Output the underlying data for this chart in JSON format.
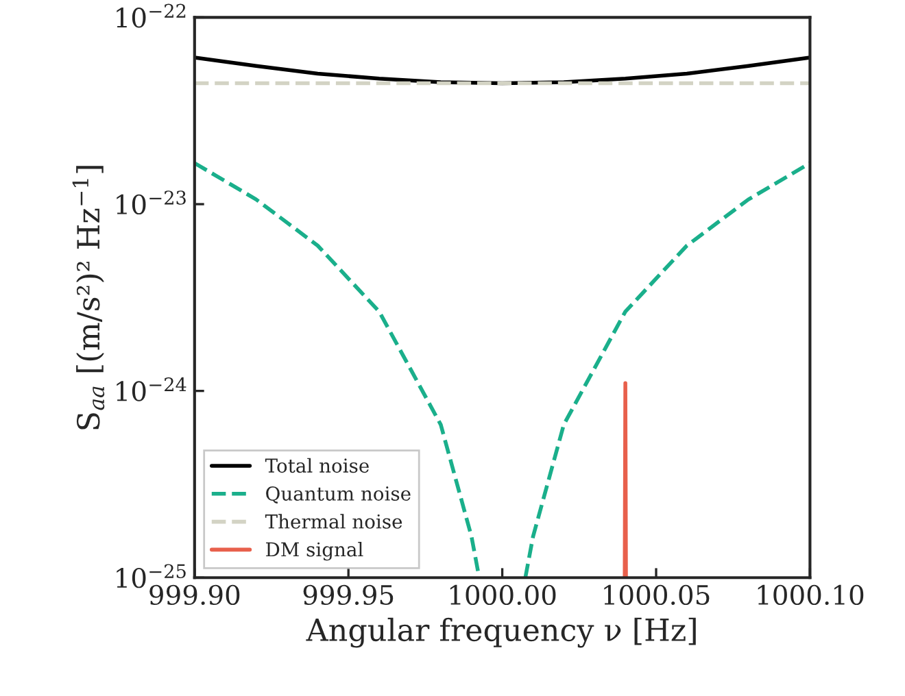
{
  "chart_data": {
    "type": "line",
    "xlabel": "Angular frequency ν [Hz]",
    "ylabel": "S$_{aa}$ [(m/s²)² Hz$^{−1}$]",
    "log": "y",
    "xlim": [
      999.9,
      1000.1
    ],
    "xticks": [
      {
        "value": 999.9,
        "label": "999.90"
      },
      {
        "value": 999.95,
        "label": "999.95"
      },
      {
        "value": 1000.0,
        "label": "1000.00"
      },
      {
        "value": 1000.05,
        "label": "1000.05"
      },
      {
        "value": 1000.1,
        "label": "1000.10"
      }
    ],
    "ylim": [
      1e-25,
      1e-22
    ],
    "yticks": [
      {
        "value": 1e-25,
        "label": "10$^{−25}$"
      },
      {
        "value": 1e-24,
        "label": "10$^{−24}$"
      },
      {
        "value": 1e-23,
        "label": "10$^{−23}$"
      },
      {
        "value": 1e-22,
        "label": "10$^{−22}$"
      }
    ],
    "legend": "bottom left",
    "grid": false,
    "series": [
      {
        "name": "Total noise",
        "color": "#000000",
        "line_style": "solid",
        "x": [
          999.9,
          999.92,
          999.94,
          999.96,
          999.98,
          1000.0,
          1000.02,
          1000.04,
          1000.06,
          1000.08,
          1000.1
        ],
        "values": [
          6.1e-23,
          5.5e-23,
          5e-23,
          4.7e-23,
          4.5e-23,
          4.44e-23,
          4.5e-23,
          4.7e-23,
          5e-23,
          5.5e-23,
          6.1e-23
        ]
      },
      {
        "name": "Quantum noise",
        "color": "#1aaf8b",
        "line_style": "dashed",
        "x": [
          999.9,
          999.92,
          999.94,
          999.96,
          999.98,
          999.99,
          999.9925,
          null,
          1000.0075,
          1000.01,
          1000.02,
          1000.04,
          1000.06,
          1000.08,
          1000.1
        ],
        "values": [
          1.66e-23,
          1.06e-23,
          6e-24,
          2.66e-24,
          6.6e-25,
          1.66e-25,
          1e-25,
          null,
          1e-25,
          1.66e-25,
          6.6e-25,
          2.66e-24,
          6e-24,
          1.06e-23,
          1.66e-23
        ]
      },
      {
        "name": "Thermal noise",
        "color": "#d3d3c4",
        "line_style": "dashed",
        "x": [
          999.9,
          1000.1
        ],
        "values": [
          4.44e-23,
          4.44e-23
        ]
      },
      {
        "name": "DM signal",
        "color": "#e8604c",
        "line_style": "solid",
        "x": [
          1000.0398,
          1000.04,
          1000.0402
        ],
        "values": [
          1e-25,
          1.1e-24,
          1e-25
        ]
      }
    ]
  }
}
